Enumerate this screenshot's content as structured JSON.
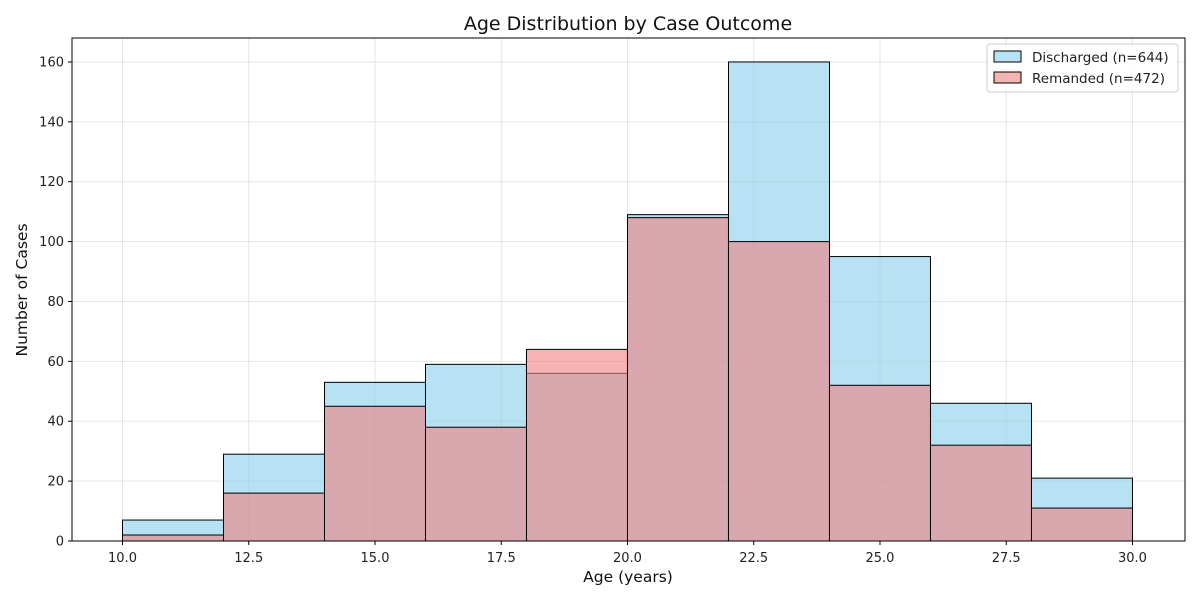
{
  "chart_data": {
    "type": "bar",
    "title": "Age Distribution by Case Outcome",
    "xlabel": "Age (years)",
    "ylabel": "Number of Cases",
    "bin_edges": [
      10,
      12,
      14,
      16,
      18,
      20,
      22,
      24,
      26,
      28,
      30
    ],
    "xlim": [
      9,
      31.04
    ],
    "ylim": [
      0,
      168
    ],
    "x_ticks": [
      "10.0",
      "12.5",
      "15.0",
      "17.5",
      "20.0",
      "22.5",
      "25.0",
      "27.5",
      "30.0"
    ],
    "y_ticks": [
      "0",
      "20",
      "40",
      "60",
      "80",
      "100",
      "120",
      "140",
      "160"
    ],
    "grid": true,
    "legend_position": "top-right",
    "series": [
      {
        "name": "Discharged (n=644)",
        "color": "#87CEEB",
        "values": [
          7,
          29,
          53,
          59,
          56,
          109,
          160,
          95,
          46,
          21
        ]
      },
      {
        "name": "Remanded (n=472)",
        "color": "#F08080",
        "values": [
          2,
          16,
          45,
          38,
          64,
          108,
          100,
          52,
          32,
          11
        ]
      }
    ]
  }
}
